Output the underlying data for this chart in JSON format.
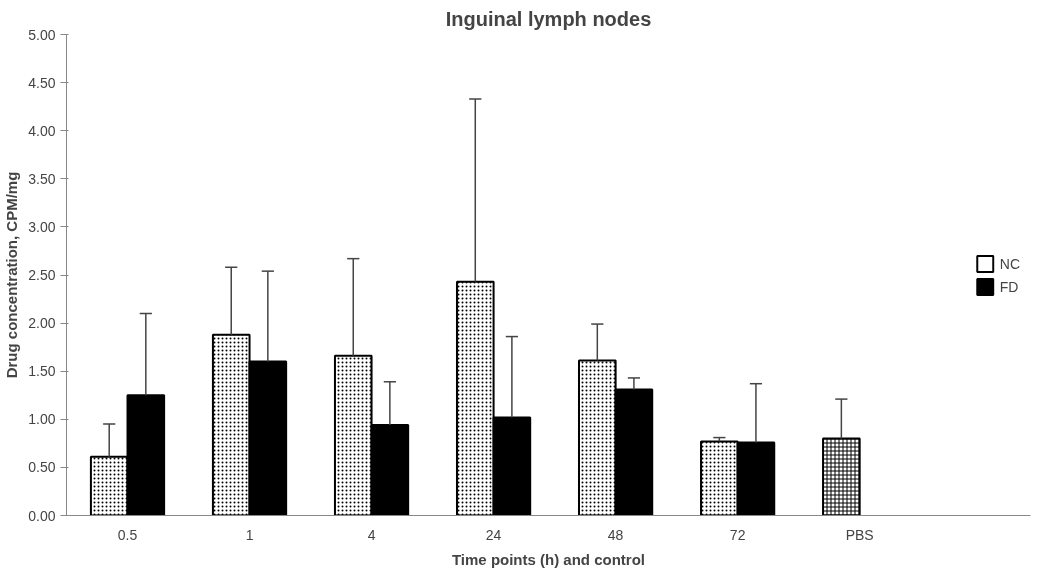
{
  "chart_data": {
    "type": "bar",
    "title": "Inguinal lymph nodes",
    "xlabel": "Time points (h) and control",
    "ylabel": "Drug concentration, CPM/mg",
    "categories": [
      "0.5",
      "1",
      "4",
      "24",
      "48",
      "72",
      "PBS"
    ],
    "series": [
      {
        "name": "NC",
        "color": "#ffffff",
        "values": [
          0.61,
          1.88,
          1.66,
          2.43,
          1.61,
          0.77,
          0.8
        ],
        "errors": [
          [
            0.61,
            0.95
          ],
          [
            1.88,
            2.58
          ],
          [
            1.66,
            2.67
          ],
          [
            2.43,
            4.33
          ],
          [
            1.61,
            1.99
          ],
          [
            0.77,
            0.81
          ],
          [
            0.8,
            1.21
          ]
        ]
      },
      {
        "name": "FD",
        "color": "#000000",
        "values": [
          1.25,
          1.6,
          0.94,
          1.02,
          1.31,
          0.76,
          null
        ],
        "errors": [
          [
            1.25,
            2.1
          ],
          [
            1.6,
            2.54
          ],
          [
            0.94,
            1.39
          ],
          [
            1.02,
            1.86
          ],
          [
            1.31,
            1.43
          ],
          [
            0.76,
            1.37
          ],
          null
        ]
      }
    ],
    "ylim": [
      0,
      5
    ],
    "yticks": [
      {
        "value": 0,
        "label": "0.00"
      },
      {
        "value": 0.5,
        "label": "0.50"
      },
      {
        "value": 1,
        "label": "1.00"
      },
      {
        "value": 1.5,
        "label": "1.50"
      },
      {
        "value": 2,
        "label": "2.00"
      },
      {
        "value": 2.5,
        "label": "2.50"
      },
      {
        "value": 3,
        "label": "3.00"
      },
      {
        "value": 3.5,
        "label": "3.50"
      },
      {
        "value": 4,
        "label": "4.00"
      },
      {
        "value": 4.5,
        "label": "4.50"
      },
      {
        "value": 5,
        "label": "5.00"
      }
    ],
    "grid": false,
    "legend": "right"
  }
}
